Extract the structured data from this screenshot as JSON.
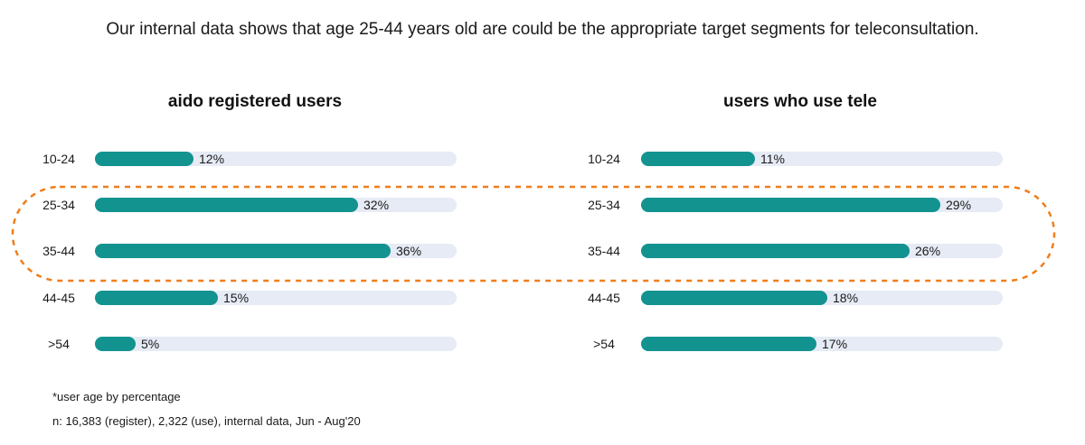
{
  "headline": "Our internal data shows that age 25-44 years old are could be the appropriate target segments for teleconsultation.",
  "chart_data": [
    {
      "type": "bar",
      "orientation": "horizontal",
      "title": "aido registered users",
      "categories": [
        "10-24",
        "25-34",
        "35-44",
        "44-45",
        ">54"
      ],
      "values": [
        12,
        32,
        36,
        15,
        5
      ],
      "value_labels": [
        "12%",
        "32%",
        "36%",
        "15%",
        "5%"
      ],
      "xlim": [
        0,
        44
      ]
    },
    {
      "type": "bar",
      "orientation": "horizontal",
      "title": "users who use tele",
      "categories": [
        "10-24",
        "25-34",
        "35-44",
        "44-45",
        ">54"
      ],
      "values": [
        11,
        29,
        26,
        18,
        17
      ],
      "value_labels": [
        "11%",
        "29%",
        "26%",
        "18%",
        "17%"
      ],
      "xlim": [
        0,
        35
      ]
    }
  ],
  "highlight": {
    "categories": [
      "25-34",
      "35-44"
    ],
    "color": "#f07d1a"
  },
  "colors": {
    "bar": "#13938f",
    "track": "#e6ebf5"
  },
  "notes": [
    "*user age by percentage",
    "n: 16,383 (register), 2,322 (use), internal data, Jun - Aug'20"
  ]
}
